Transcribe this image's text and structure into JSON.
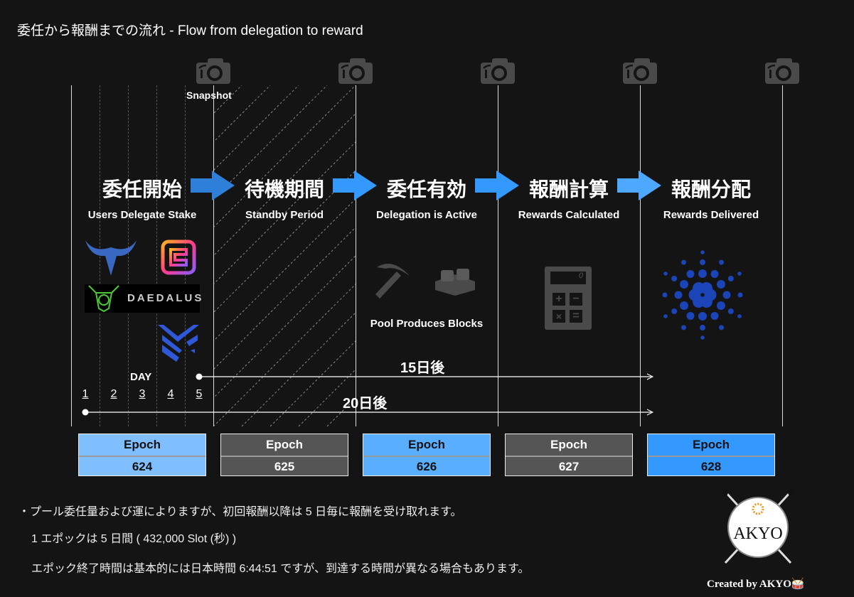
{
  "title": "委任から報酬までの流れ - Flow from delegation to reward",
  "snapshot_label": "Snapshot",
  "stages": [
    {
      "ja": "委任開始",
      "en": "Users Delegate Stake"
    },
    {
      "ja": "待機期間",
      "en": "Standby Period"
    },
    {
      "ja": "委任有効",
      "en": "Delegation is Active"
    },
    {
      "ja": "報酬計算",
      "en": "Rewards Calculated"
    },
    {
      "ja": "報酬分配",
      "en": "Rewards Delivered"
    }
  ],
  "pool_label": "Pool Produces Blocks",
  "daedalus": "DAEDALUS",
  "day_label": "DAY",
  "days": [
    "1",
    "2",
    "3",
    "4",
    "5"
  ],
  "span_15": "15日後",
  "span_20": "20日後",
  "epochs": [
    {
      "label": "Epoch",
      "number": "624",
      "color": "#80bfff",
      "text": "#111"
    },
    {
      "label": "Epoch",
      "number": "625",
      "color": "#555555",
      "text": "#fff"
    },
    {
      "label": "Epoch",
      "number": "626",
      "color": "#5aaeff",
      "text": "#111"
    },
    {
      "label": "Epoch",
      "number": "627",
      "color": "#555555",
      "text": "#fff"
    },
    {
      "label": "Epoch",
      "number": "628",
      "color": "#3399ff",
      "text": "#111"
    }
  ],
  "notes": [
    "・プール委任量および運によりますが、初回報酬以降は 5 日毎に報酬を受け取れます。",
    "1 エポックは 5 日間 ( 432,000 Slot (秒) )",
    "エポック終了時間は基本的には日本時間 6:44:51 ですが、到達する時間が異なる場合もあります。"
  ],
  "logo_text": "AKYO",
  "credit": "Created by AKYO🥁",
  "calculator_display": "0"
}
